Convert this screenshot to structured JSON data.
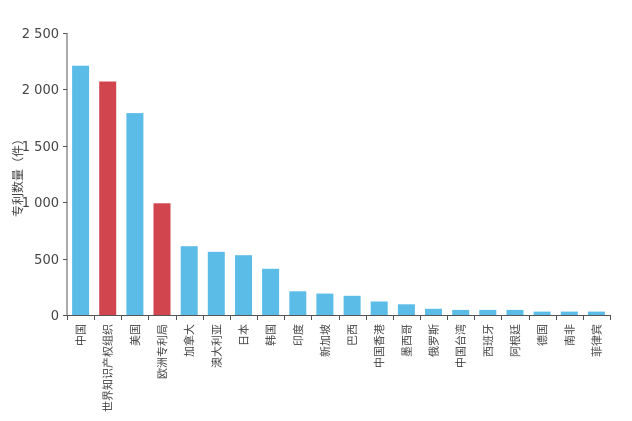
{
  "chart_data": {
    "type": "bar",
    "title": "",
    "xlabel": "",
    "ylabel": "专利数量（件）",
    "ylim": [
      0,
      2500
    ],
    "yticks": [
      0,
      500,
      1000,
      1500,
      2000,
      2500
    ],
    "ytick_labels": [
      "0",
      "500",
      "1 000",
      "1 500",
      "2 000",
      "2 500"
    ],
    "grid": false,
    "legend": "none",
    "colors": {
      "default": "#5BBCE8",
      "highlight": "#D0454E",
      "axis": "#555555"
    },
    "categories": [
      "中国",
      "世界知识产权组织",
      "美国",
      "欧洲专利局",
      "加拿大",
      "澳大利亚",
      "日本",
      "韩国",
      "印度",
      "新加坡",
      "巴西",
      "中国香港",
      "墨西哥",
      "俄罗斯",
      "中国台湾",
      "西班牙",
      "阿根廷",
      "德国",
      "南非",
      "菲律宾"
    ],
    "values": [
      2210,
      2070,
      1790,
      990,
      610,
      560,
      530,
      410,
      210,
      190,
      170,
      120,
      95,
      55,
      45,
      45,
      45,
      30,
      30,
      30
    ],
    "highlight": [
      false,
      true,
      false,
      true,
      false,
      false,
      false,
      false,
      false,
      false,
      false,
      false,
      false,
      false,
      false,
      false,
      false,
      false,
      false,
      false
    ]
  }
}
